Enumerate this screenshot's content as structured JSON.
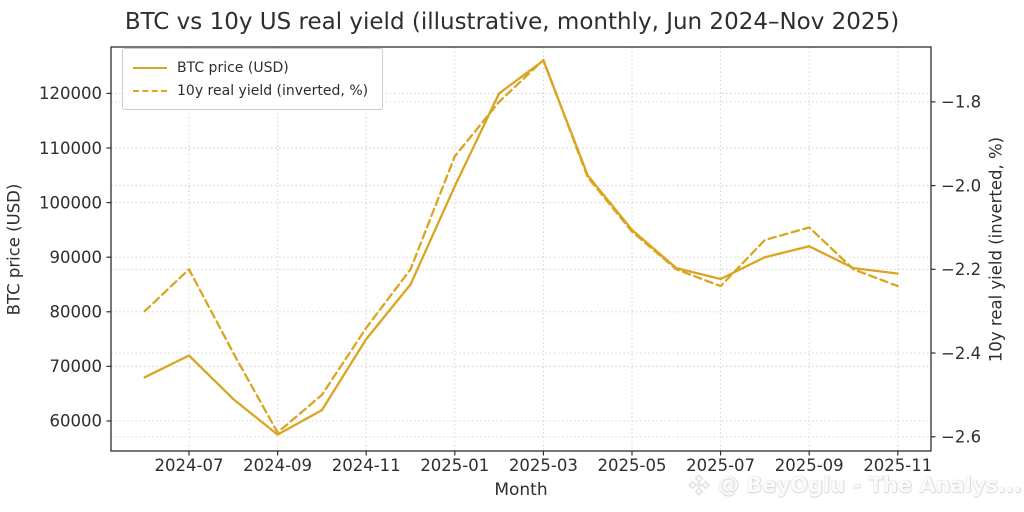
{
  "chart": {
    "title": "BTC vs 10y US real yield (illustrative, monthly, Jun 2024–Nov 2025)",
    "watermark_text": "@ BeyOglu - The Analys...",
    "colors": {
      "line": "#DAA520",
      "text": "#2e2e2e",
      "grid": "#cccccc",
      "spine": "#2e2e2e",
      "legend_border": "#cccccc",
      "watermark": "#e8e8e8"
    },
    "legend": [
      {
        "label": "BTC price (USD)",
        "style": "solid"
      },
      {
        "label": "10y real yield (inverted, %)",
        "style": "dashed"
      }
    ]
  },
  "chart_data": {
    "type": "line",
    "title": "BTC vs 10y US real yield (illustrative, monthly, Jun 2024–Nov 2025)",
    "xlabel": "Month",
    "ylabel_left": "BTC price (USD)",
    "ylabel_right": "10y real yield (inverted, %)",
    "x": [
      "2024-06",
      "2024-07",
      "2024-08",
      "2024-09",
      "2024-10",
      "2024-11",
      "2024-12",
      "2025-01",
      "2025-02",
      "2025-03",
      "2025-04",
      "2025-05",
      "2025-06",
      "2025-07",
      "2025-08",
      "2025-09",
      "2025-10",
      "2025-11"
    ],
    "x_tick_labels": [
      "2024-07",
      "2024-09",
      "2024-11",
      "2025-01",
      "2025-03",
      "2025-05",
      "2025-07",
      "2025-09",
      "2025-11"
    ],
    "series": [
      {
        "name": "BTC price (USD)",
        "axis": "left",
        "style": "solid",
        "values": [
          68000,
          72000,
          64000,
          57500,
          62000,
          75000,
          85000,
          103000,
          120000,
          126000,
          105000,
          95000,
          88000,
          86000,
          90000,
          92000,
          88000,
          87000
        ]
      },
      {
        "name": "10y real yield (inverted, %)",
        "axis": "right",
        "style": "dashed",
        "values": [
          -2.3,
          -2.2,
          -2.4,
          -2.59,
          -2.5,
          -2.34,
          -2.2,
          -1.93,
          -1.8,
          -1.7,
          -1.98,
          -2.11,
          -2.2,
          -2.24,
          -2.13,
          -2.1,
          -2.2,
          -2.24
        ]
      }
    ],
    "left_axis": {
      "ticks": [
        60000,
        70000,
        80000,
        90000,
        100000,
        110000,
        120000
      ],
      "tick_labels": [
        "60000",
        "70000",
        "80000",
        "90000",
        "100000",
        "110000",
        "120000"
      ],
      "range": [
        54500,
        128500
      ]
    },
    "right_axis": {
      "ticks": [
        -1.8,
        -2.0,
        -2.2,
        -2.4,
        -2.6
      ],
      "tick_labels": [
        "−1.8",
        "−2.0",
        "−2.2",
        "−2.4",
        "−2.6"
      ],
      "range": [
        -2.634,
        -1.669
      ]
    },
    "grid": true,
    "legend_position": "upper left"
  }
}
